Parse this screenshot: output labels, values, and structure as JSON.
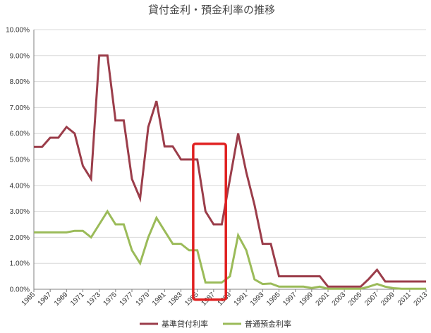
{
  "chart_data": {
    "type": "line",
    "title": "貸付金利・預金利率の推移",
    "xlabel": "",
    "ylabel": "",
    "ylim": [
      0,
      10
    ],
    "y_ticks": [
      "0.00%",
      "1.00%",
      "2.00%",
      "3.00%",
      "4.00%",
      "5.00%",
      "6.00%",
      "7.00%",
      "8.00%",
      "9.00%",
      "10.00%"
    ],
    "x_ticks": [
      "1965",
      "1967",
      "1969",
      "1971",
      "1973",
      "1975",
      "1977",
      "1979",
      "1981",
      "1983",
      "1985",
      "1987",
      "1989",
      "1991",
      "1993",
      "1995",
      "1997",
      "1999",
      "2001",
      "2003",
      "2005",
      "2007",
      "2009",
      "2011",
      "2013"
    ],
    "grid": true,
    "legend_position": "bottom",
    "series": [
      {
        "name": "基準貸付利率",
        "color": "#9b3d4a",
        "x": [
          1965,
          1966,
          1967,
          1968,
          1969,
          1970,
          1971,
          1972,
          1973,
          1974,
          1975,
          1976,
          1977,
          1978,
          1979,
          1980,
          1981,
          1982,
          1983,
          1984,
          1985,
          1986,
          1987,
          1988,
          1989,
          1990,
          1991,
          1992,
          1993,
          1994,
          1995,
          1996,
          1997,
          1998,
          1999,
          2000,
          2001,
          2002,
          2003,
          2004,
          2005,
          2006,
          2007,
          2008,
          2009,
          2010,
          2011,
          2012,
          2013
        ],
        "values": [
          5.48,
          5.48,
          5.84,
          5.84,
          6.25,
          6.0,
          4.75,
          4.25,
          9.0,
          9.0,
          6.5,
          6.5,
          4.25,
          3.5,
          6.25,
          7.25,
          5.5,
          5.5,
          5.0,
          5.0,
          5.0,
          3.0,
          2.5,
          2.5,
          4.25,
          6.0,
          4.5,
          3.25,
          1.75,
          1.75,
          0.5,
          0.5,
          0.5,
          0.5,
          0.5,
          0.5,
          0.1,
          0.1,
          0.1,
          0.1,
          0.1,
          0.4,
          0.75,
          0.3,
          0.3,
          0.3,
          0.3,
          0.3,
          0.3
        ]
      },
      {
        "name": "普通預金利率",
        "color": "#9bbb59",
        "x": [
          1965,
          1966,
          1967,
          1968,
          1969,
          1970,
          1971,
          1972,
          1973,
          1974,
          1975,
          1976,
          1977,
          1978,
          1979,
          1980,
          1981,
          1982,
          1983,
          1984,
          1985,
          1986,
          1987,
          1988,
          1989,
          1990,
          1991,
          1992,
          1993,
          1994,
          1995,
          1996,
          1997,
          1998,
          1999,
          2000,
          2001,
          2002,
          2003,
          2004,
          2005,
          2006,
          2007,
          2008,
          2009,
          2010,
          2011,
          2012,
          2013
        ],
        "values": [
          2.19,
          2.19,
          2.19,
          2.19,
          2.19,
          2.25,
          2.25,
          2.0,
          2.5,
          3.0,
          2.5,
          2.5,
          1.5,
          1.0,
          2.0,
          2.75,
          2.25,
          1.75,
          1.75,
          1.5,
          1.5,
          0.26,
          0.26,
          0.26,
          0.5,
          2.08,
          1.5,
          0.38,
          0.2,
          0.22,
          0.1,
          0.1,
          0.1,
          0.1,
          0.05,
          0.1,
          0.02,
          0.02,
          0.02,
          0.02,
          0.02,
          0.1,
          0.2,
          0.1,
          0.04,
          0.02,
          0.02,
          0.02,
          0.02
        ]
      }
    ],
    "highlight_box": {
      "x_start": 1984.5,
      "x_end": 1988.5,
      "y_start": -0.4,
      "y_end": 5.6,
      "color": "#e02020"
    }
  }
}
